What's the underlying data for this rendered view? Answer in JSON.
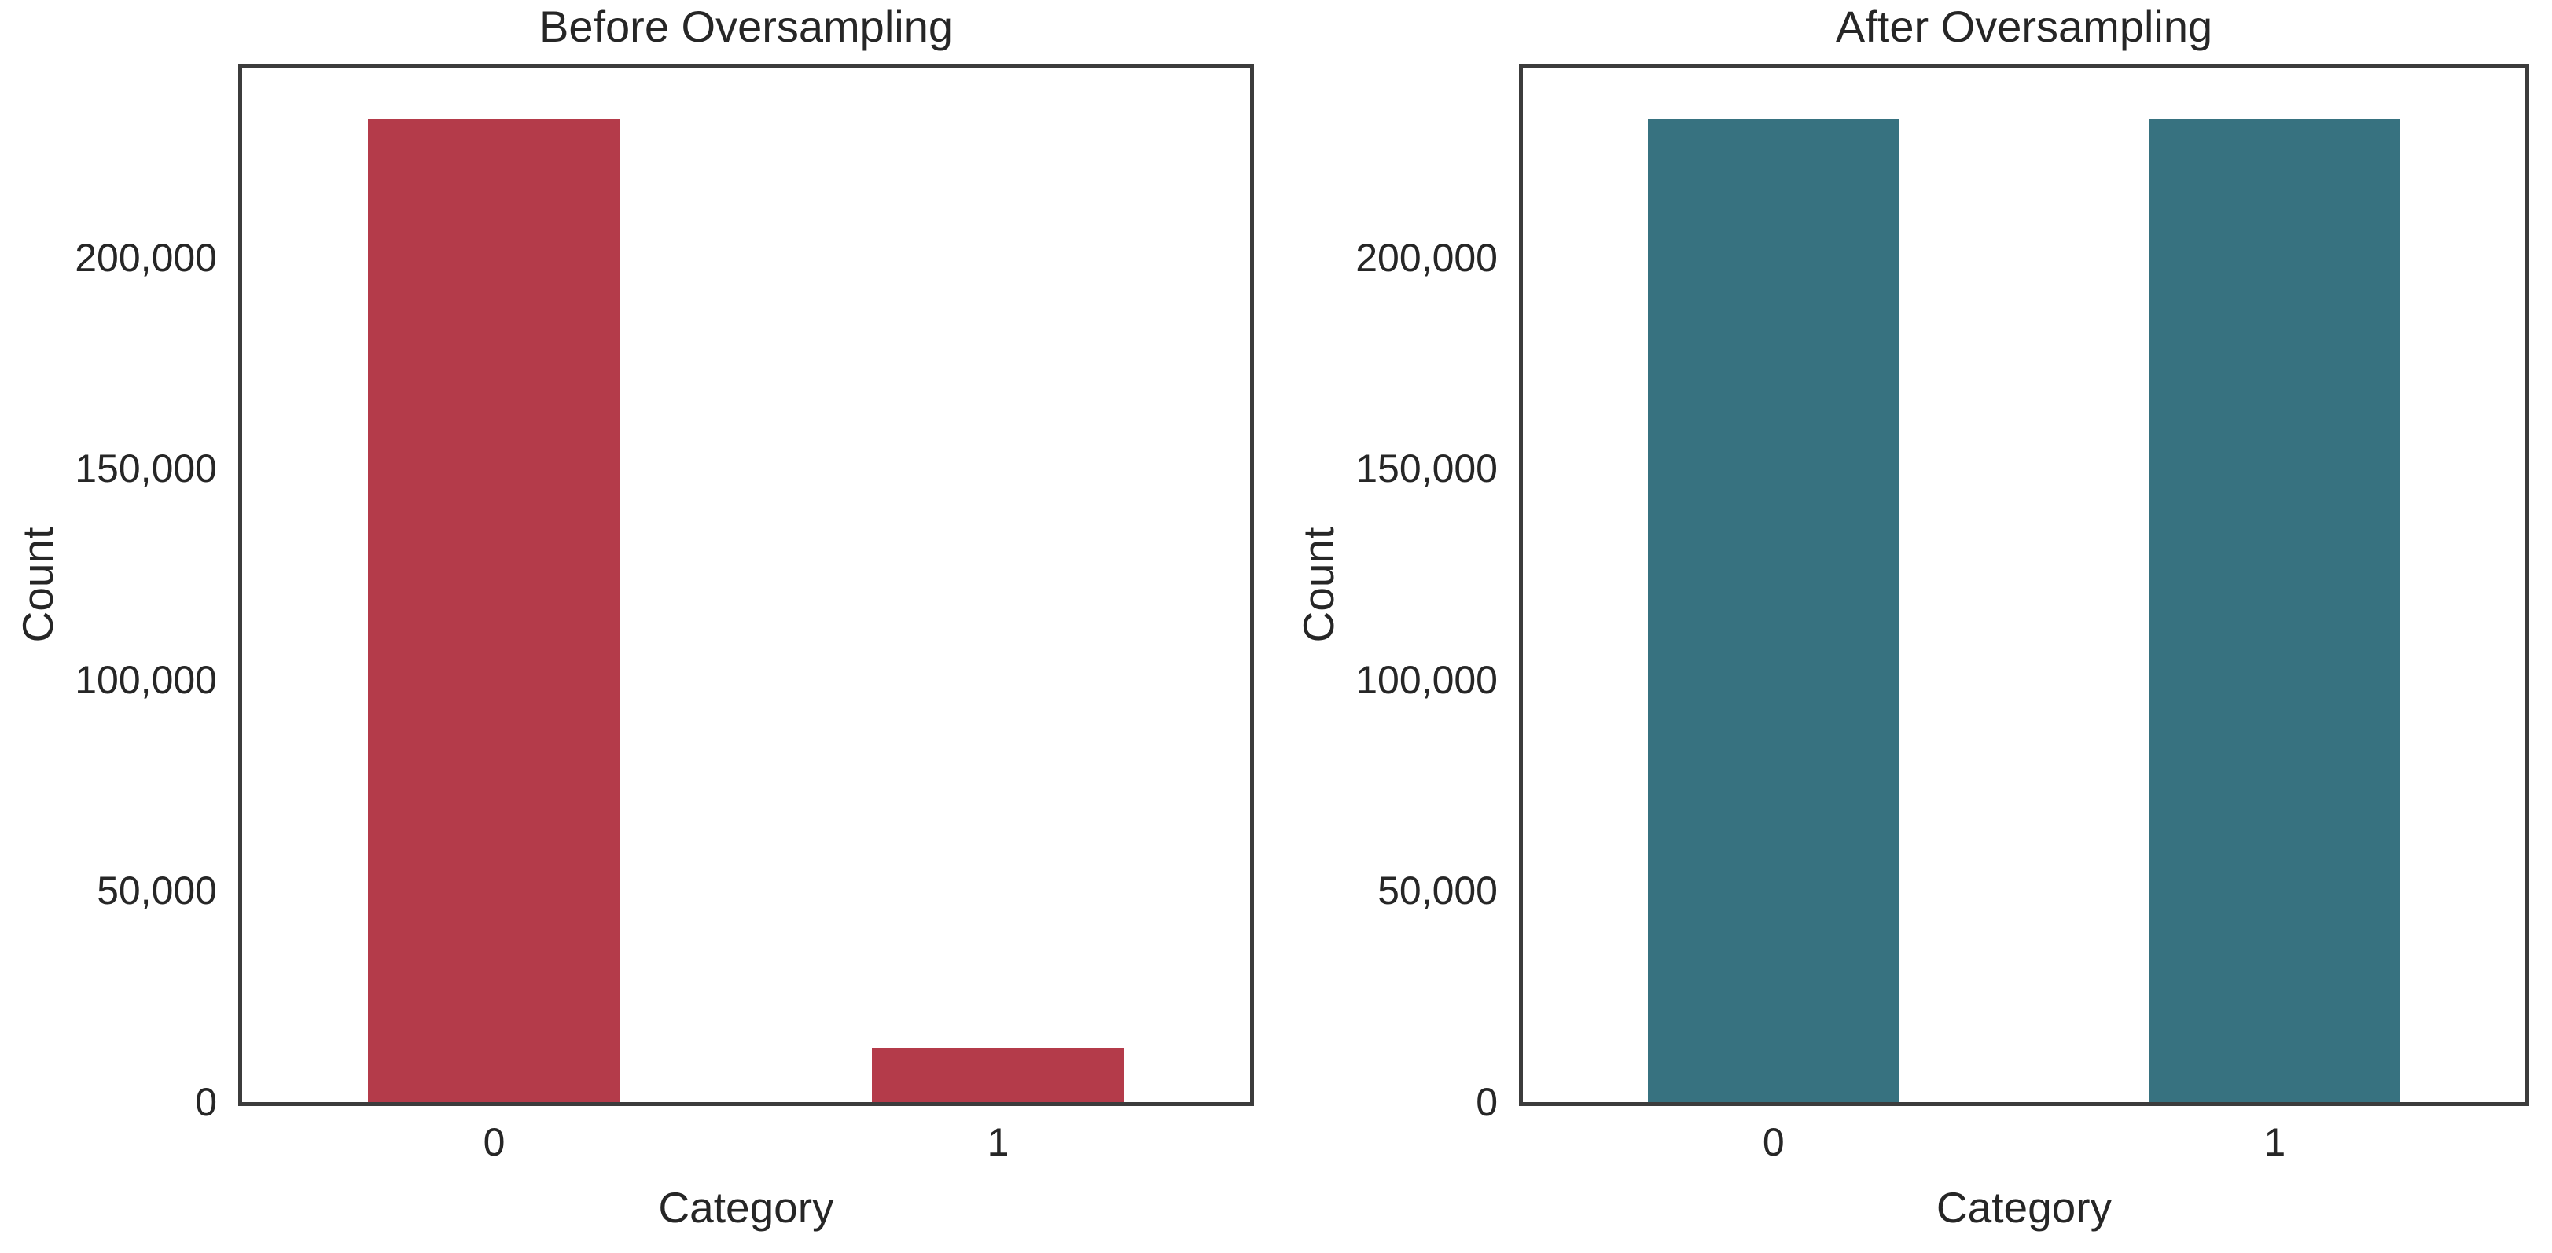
{
  "figure": {
    "background_color": "#ffffff",
    "spine_color": "#3c3c3c",
    "text_color": "#262626"
  },
  "chart_data": [
    {
      "type": "bar",
      "title": "Before Oversampling",
      "xlabel": "Category",
      "ylabel": "Count",
      "categories": [
        "0",
        "1"
      ],
      "values": [
        232800,
        12800
      ],
      "bar_color": "#b43b4a",
      "ylim": [
        0,
        245000
      ],
      "ytick_values": [
        0,
        50000,
        100000,
        150000,
        200000
      ],
      "ytick_labels": [
        "0",
        "50,000",
        "100,000",
        "150,000",
        "200,000"
      ],
      "grid": false,
      "legend_position": "none"
    },
    {
      "type": "bar",
      "title": "After Oversampling",
      "xlabel": "Category",
      "ylabel": "Count",
      "categories": [
        "0",
        "1"
      ],
      "values": [
        232800,
        232800
      ],
      "bar_color": "#377280",
      "ylim": [
        0,
        245000
      ],
      "ytick_values": [
        0,
        50000,
        100000,
        150000,
        200000
      ],
      "ytick_labels": [
        "0",
        "50,000",
        "100,000",
        "150,000",
        "200,000"
      ],
      "grid": false,
      "legend_position": "none"
    }
  ]
}
